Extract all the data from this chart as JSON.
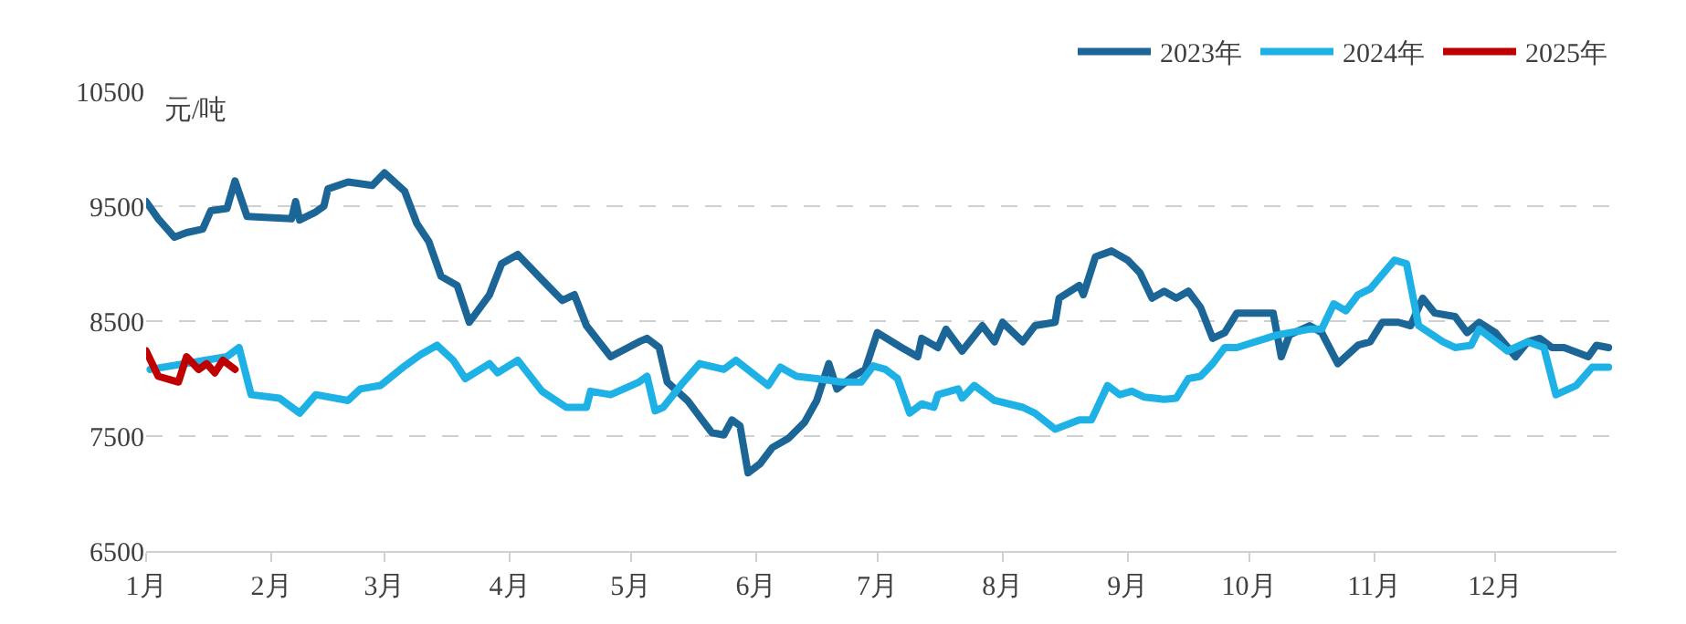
{
  "chart_data": {
    "type": "line",
    "ylabel": "元/吨",
    "xlim": [
      "--01-01",
      "--12-31"
    ],
    "xticks": [
      {
        "value": "--01-01",
        "label": "1月"
      },
      {
        "value": "--02-01",
        "label": "2月"
      },
      {
        "value": "--03-01",
        "label": "3月"
      },
      {
        "value": "--04-01",
        "label": "4月"
      },
      {
        "value": "--05-01",
        "label": "5月"
      },
      {
        "value": "--06-01",
        "label": "6月"
      },
      {
        "value": "--07-01",
        "label": "7月"
      },
      {
        "value": "--08-01",
        "label": "8月"
      },
      {
        "value": "--09-01",
        "label": "9月"
      },
      {
        "value": "--10-01",
        "label": "10月"
      },
      {
        "value": "--11-01",
        "label": "11月"
      },
      {
        "value": "--12-01",
        "label": "12月"
      }
    ],
    "ylim": [
      6500,
      10500
    ],
    "yticks": [
      6500,
      7500,
      8500,
      9500,
      10500
    ],
    "grid": "y",
    "legend": "top right",
    "marker": "none",
    "line_style": "solid",
    "series": [
      {
        "name": "2023年",
        "color": "#1b6597",
        "x": [
          "--01-01",
          "--01-04",
          "--01-08",
          "--01-11",
          "--01-15",
          "--01-17",
          "--01-21",
          "--01-23",
          "--01-26",
          "--02-06",
          "--02-07",
          "--02-08",
          "--02-12",
          "--02-14",
          "--02-15",
          "--02-20",
          "--02-26",
          "--03-01",
          "--03-06",
          "--03-09",
          "--03-12",
          "--03-15",
          "--03-19",
          "--03-22",
          "--03-27",
          "--03-30",
          "--04-03",
          "--04-09",
          "--04-14",
          "--04-17",
          "--04-20",
          "--04-26",
          "--05-03",
          "--05-05",
          "--05-08",
          "--05-10",
          "--05-15",
          "--05-21",
          "--05-24",
          "--05-26",
          "--05-28",
          "--05-30",
          "--06-02",
          "--06-05",
          "--06-09",
          "--06-13",
          "--06-16",
          "--06-19",
          "--06-21",
          "--06-25",
          "--06-28",
          "--07-01",
          "--07-07",
          "--07-11",
          "--07-12",
          "--07-16",
          "--07-18",
          "--07-22",
          "--07-27",
          "--07-30",
          "--08-01",
          "--08-06",
          "--08-09",
          "--08-14",
          "--08-15",
          "--08-20",
          "--08-21",
          "--08-24",
          "--08-28",
          "--09-01",
          "--09-04",
          "--09-07",
          "--09-10",
          "--09-13",
          "--09-16",
          "--09-19",
          "--09-22",
          "--09-25",
          "--09-28",
          "--10-07",
          "--10-09",
          "--10-11",
          "--10-16",
          "--10-19",
          "--10-23",
          "--10-28",
          "--10-31",
          "--11-03",
          "--11-07",
          "--11-10",
          "--11-13",
          "--11-16",
          "--11-21",
          "--11-24",
          "--11-27",
          "--12-01",
          "--12-06",
          "--12-09",
          "--12-12",
          "--12-15",
          "--12-18",
          "--12-24",
          "--12-26",
          "--12-29"
        ],
        "values": [
          9540,
          9390,
          9230,
          9270,
          9300,
          9460,
          9480,
          9720,
          9410,
          9390,
          9540,
          9380,
          9450,
          9500,
          9650,
          9710,
          9680,
          9790,
          9630,
          9350,
          9190,
          8890,
          8810,
          8490,
          8730,
          9000,
          9080,
          8860,
          8680,
          8730,
          8460,
          8190,
          8320,
          8350,
          8270,
          7970,
          7810,
          7530,
          7510,
          7640,
          7590,
          7180,
          7260,
          7400,
          7480,
          7620,
          7810,
          8130,
          7910,
          8020,
          8080,
          8400,
          8270,
          8190,
          8350,
          8270,
          8430,
          8240,
          8460,
          8320,
          8490,
          8320,
          8460,
          8490,
          8700,
          8810,
          8730,
          9060,
          9110,
          9030,
          8920,
          8700,
          8760,
          8700,
          8760,
          8620,
          8350,
          8400,
          8570,
          8570,
          8190,
          8380,
          8460,
          8400,
          8130,
          8290,
          8320,
          8490,
          8490,
          8460,
          8700,
          8570,
          8540,
          8400,
          8490,
          8400,
          8190,
          8320,
          8350,
          8270,
          8270,
          8190,
          8290,
          8270
        ]
      },
      {
        "name": "2024年",
        "color": "#1db1e6",
        "x": [
          "--01-02",
          "--01-21",
          "--01-24",
          "--01-27",
          "--02-03",
          "--02-08",
          "--02-12",
          "--02-20",
          "--02-23",
          "--02-28",
          "--03-06",
          "--03-10",
          "--03-14",
          "--03-18",
          "--03-21",
          "--03-27",
          "--03-29",
          "--04-03",
          "--04-09",
          "--04-15",
          "--04-20",
          "--04-21",
          "--04-26",
          "--05-03",
          "--05-05",
          "--05-07",
          "--05-09",
          "--05-14",
          "--05-18",
          "--05-24",
          "--05-27",
          "--06-04",
          "--06-07",
          "--06-11",
          "--06-16",
          "--06-22",
          "--06-27",
          "--06-30",
          "--07-03",
          "--07-06",
          "--07-09",
          "--07-12",
          "--07-15",
          "--07-16",
          "--07-21",
          "--07-22",
          "--07-25",
          "--07-30",
          "--08-06",
          "--08-09",
          "--08-14",
          "--08-20",
          "--08-23",
          "--08-27",
          "--08-30",
          "--09-02",
          "--09-05",
          "--09-10",
          "--09-13",
          "--09-16",
          "--09-19",
          "--09-22",
          "--09-25",
          "--09-28",
          "--10-08",
          "--10-16",
          "--10-19",
          "--10-22",
          "--10-25",
          "--10-28",
          "--10-31",
          "--11-06",
          "--11-09",
          "--11-12",
          "--11-18",
          "--11-21",
          "--11-25",
          "--11-27",
          "--11-30",
          "--12-04",
          "--12-09",
          "--12-13",
          "--12-16",
          "--12-21",
          "--12-25",
          "--12-29"
        ],
        "values": [
          8080,
          8190,
          8270,
          7860,
          7830,
          7700,
          7860,
          7810,
          7910,
          7940,
          8110,
          8210,
          8290,
          8160,
          8000,
          8130,
          8050,
          8160,
          7890,
          7750,
          7750,
          7890,
          7860,
          7970,
          8020,
          7720,
          7750,
          7970,
          8130,
          8080,
          8160,
          7940,
          8100,
          8020,
          8000,
          7970,
          7970,
          8110,
          8080,
          8000,
          7700,
          7780,
          7750,
          7860,
          7910,
          7830,
          7940,
          7810,
          7750,
          7700,
          7560,
          7640,
          7640,
          7940,
          7860,
          7890,
          7840,
          7820,
          7830,
          8000,
          8020,
          8130,
          8270,
          8270,
          8380,
          8430,
          8430,
          8650,
          8590,
          8730,
          8780,
          9030,
          9000,
          8460,
          8320,
          8270,
          8290,
          8430,
          8350,
          8240,
          8320,
          8270,
          7860,
          7940,
          8100,
          8100
        ]
      },
      {
        "name": "2025年",
        "color": "#c00000",
        "x": [
          "--01-01",
          "--01-04",
          "--01-09",
          "--01-11",
          "--01-14",
          "--01-16",
          "--01-18",
          "--01-20",
          "--01-23"
        ],
        "values": [
          8240,
          8020,
          7970,
          8190,
          8080,
          8130,
          8050,
          8160,
          8080
        ]
      }
    ]
  }
}
